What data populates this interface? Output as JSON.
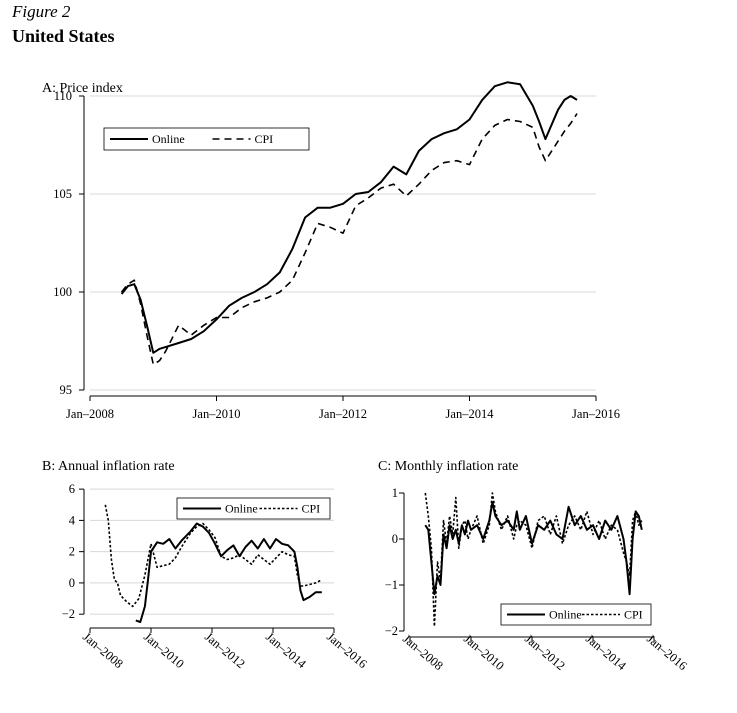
{
  "figure": {
    "label": "Figure 2",
    "title": "United States"
  },
  "chart_data": [
    {
      "id": "A",
      "type": "line",
      "title": "A: Price index",
      "xlabel": "",
      "ylabel": "",
      "xlim": [
        2008.0,
        2016.0
      ],
      "ylim": [
        95,
        110
      ],
      "xticks": [
        2008,
        2010,
        2012,
        2014,
        2016
      ],
      "xtick_labels": [
        "Jan–2008",
        "Jan–2010",
        "Jan–2012",
        "Jan–2014",
        "Jan–2016"
      ],
      "yticks": [
        95,
        100,
        105,
        110
      ],
      "grid": true,
      "legend": {
        "placement": "top-left",
        "boxed": true
      },
      "series": [
        {
          "name": "Online",
          "style": "solid",
          "color": "#000000",
          "x": [
            2008.5,
            2008.6,
            2008.7,
            2008.8,
            2008.9,
            2009.0,
            2009.1,
            2009.2,
            2009.4,
            2009.6,
            2009.8,
            2010.0,
            2010.2,
            2010.4,
            2010.6,
            2010.8,
            2011.0,
            2011.2,
            2011.4,
            2011.6,
            2011.8,
            2012.0,
            2012.2,
            2012.4,
            2012.6,
            2012.8,
            2013.0,
            2013.2,
            2013.4,
            2013.6,
            2013.8,
            2014.0,
            2014.2,
            2014.4,
            2014.6,
            2014.8,
            2015.0,
            2015.1,
            2015.2,
            2015.4,
            2015.5,
            2015.6,
            2015.7
          ],
          "y": [
            99.9,
            100.3,
            100.4,
            99.6,
            98.3,
            96.9,
            97.1,
            97.2,
            97.4,
            97.6,
            98.0,
            98.6,
            99.3,
            99.7,
            100.0,
            100.4,
            101.0,
            102.2,
            103.8,
            104.3,
            104.3,
            104.5,
            105.0,
            105.1,
            105.6,
            106.4,
            106.0,
            107.2,
            107.8,
            108.1,
            108.3,
            108.8,
            109.8,
            110.5,
            110.7,
            110.6,
            109.5,
            108.7,
            107.8,
            109.3,
            109.8,
            110.0,
            109.8
          ]
        },
        {
          "name": "CPI",
          "style": "dashed",
          "color": "#000000",
          "x": [
            2008.5,
            2008.6,
            2008.7,
            2008.8,
            2008.9,
            2009.0,
            2009.1,
            2009.2,
            2009.4,
            2009.6,
            2009.8,
            2010.0,
            2010.2,
            2010.4,
            2010.6,
            2010.8,
            2011.0,
            2011.2,
            2011.4,
            2011.6,
            2011.8,
            2012.0,
            2012.2,
            2012.4,
            2012.6,
            2012.8,
            2013.0,
            2013.2,
            2013.4,
            2013.6,
            2013.8,
            2014.0,
            2014.2,
            2014.4,
            2014.6,
            2014.8,
            2015.0,
            2015.1,
            2015.2,
            2015.4,
            2015.5,
            2015.6,
            2015.7
          ],
          "y": [
            100.0,
            100.4,
            100.6,
            99.4,
            97.8,
            96.3,
            96.5,
            97.0,
            98.3,
            97.8,
            98.3,
            98.7,
            98.7,
            99.2,
            99.5,
            99.7,
            100.0,
            100.6,
            102.0,
            103.5,
            103.3,
            103.0,
            104.4,
            104.8,
            105.3,
            105.5,
            104.9,
            105.5,
            106.2,
            106.6,
            106.7,
            106.5,
            107.8,
            108.5,
            108.8,
            108.7,
            108.4,
            107.4,
            106.7,
            107.7,
            108.2,
            108.6,
            109.1
          ]
        }
      ]
    },
    {
      "id": "B",
      "type": "line",
      "title": "B: Annual inflation rate",
      "xlabel": "",
      "ylabel": "",
      "xlim": [
        2008.0,
        2016.0
      ],
      "ylim": [
        -2.5,
        6.2
      ],
      "xticks": [
        2008,
        2010,
        2012,
        2014,
        2016
      ],
      "xtick_labels": [
        "Jan–2008",
        "Jan–2010",
        "Jan–2012",
        "Jan–2014",
        "Jan–2016"
      ],
      "yticks": [
        -2,
        0,
        2,
        4,
        6
      ],
      "grid": true,
      "legend": {
        "placement": "top-right",
        "boxed": true
      },
      "series": [
        {
          "name": "Online",
          "style": "solid",
          "color": "#000000",
          "x": [
            2009.5,
            2009.65,
            2009.8,
            2009.9,
            2010.0,
            2010.2,
            2010.4,
            2010.6,
            2010.8,
            2011.0,
            2011.3,
            2011.5,
            2011.7,
            2011.9,
            2012.1,
            2012.3,
            2012.5,
            2012.7,
            2012.9,
            2013.1,
            2013.3,
            2013.5,
            2013.7,
            2013.9,
            2014.1,
            2014.3,
            2014.5,
            2014.7,
            2014.8,
            2014.9,
            2015.0,
            2015.2,
            2015.4,
            2015.6
          ],
          "y": [
            -2.4,
            -2.5,
            -1.5,
            0.2,
            2.0,
            2.6,
            2.5,
            2.8,
            2.2,
            2.7,
            3.3,
            3.8,
            3.6,
            3.2,
            2.5,
            1.7,
            2.1,
            2.4,
            1.7,
            2.3,
            2.7,
            2.2,
            2.8,
            2.2,
            2.8,
            2.5,
            2.4,
            2.0,
            1.0,
            -0.5,
            -1.1,
            -0.9,
            -0.6,
            -0.6
          ]
        },
        {
          "name": "CPI",
          "style": "dotted",
          "color": "#000000",
          "x": [
            2008.5,
            2008.6,
            2008.7,
            2008.8,
            2008.9,
            2009.0,
            2009.2,
            2009.4,
            2009.6,
            2009.8,
            2010.0,
            2010.2,
            2010.4,
            2010.6,
            2010.8,
            2011.0,
            2011.3,
            2011.5,
            2011.7,
            2011.9,
            2012.1,
            2012.3,
            2012.5,
            2012.7,
            2012.9,
            2013.1,
            2013.3,
            2013.5,
            2013.7,
            2013.9,
            2014.1,
            2014.3,
            2014.5,
            2014.7,
            2014.8,
            2014.9,
            2015.0,
            2015.2,
            2015.4,
            2015.6
          ],
          "y": [
            5.0,
            4.0,
            1.5,
            0.2,
            0.0,
            -0.8,
            -1.2,
            -1.5,
            -1.0,
            0.5,
            2.5,
            1.0,
            1.1,
            1.2,
            1.6,
            2.3,
            3.2,
            3.6,
            3.8,
            3.4,
            2.9,
            1.7,
            1.5,
            1.6,
            1.8,
            1.5,
            1.2,
            1.8,
            1.5,
            1.2,
            1.6,
            2.0,
            1.8,
            1.7,
            0.5,
            -0.2,
            -0.2,
            -0.1,
            0.0,
            0.2
          ]
        }
      ]
    },
    {
      "id": "C",
      "type": "line",
      "title": "C: Monthly inflation rate",
      "xlabel": "",
      "ylabel": "",
      "xlim": [
        2008.0,
        2016.0
      ],
      "ylim": [
        -2.0,
        1.0
      ],
      "xticks": [
        2008,
        2010,
        2012,
        2014,
        2016
      ],
      "xtick_labels": [
        "Jan–2008",
        "Jan–2010",
        "Jan–2012",
        "Jan–2014",
        "Jan–2016"
      ],
      "yticks": [
        -2,
        -1,
        0,
        1
      ],
      "grid": false,
      "legend": {
        "placement": "bottom-right",
        "boxed": true
      },
      "series": [
        {
          "name": "Online",
          "style": "solid",
          "color": "#000000",
          "x": [
            2008.5,
            2008.6,
            2008.7,
            2008.8,
            2008.9,
            2009.0,
            2009.1,
            2009.2,
            2009.3,
            2009.4,
            2009.5,
            2009.6,
            2009.7,
            2009.8,
            2009.9,
            2010.0,
            2010.2,
            2010.4,
            2010.6,
            2010.7,
            2010.8,
            2011.0,
            2011.2,
            2011.4,
            2011.5,
            2011.6,
            2011.8,
            2012.0,
            2012.2,
            2012.4,
            2012.6,
            2012.8,
            2013.0,
            2013.2,
            2013.4,
            2013.6,
            2013.8,
            2014.0,
            2014.2,
            2014.4,
            2014.6,
            2014.8,
            2015.0,
            2015.1,
            2015.2,
            2015.3,
            2015.4,
            2015.5,
            2015.6
          ],
          "y": [
            0.3,
            0.2,
            -0.5,
            -1.2,
            -0.8,
            -1.0,
            0.1,
            -0.2,
            0.3,
            0.0,
            0.2,
            -0.1,
            0.3,
            0.1,
            0.4,
            0.2,
            0.3,
            0.0,
            0.4,
            0.8,
            0.5,
            0.3,
            0.4,
            0.2,
            0.6,
            0.2,
            0.5,
            -0.1,
            0.3,
            0.2,
            0.4,
            0.1,
            0.0,
            0.7,
            0.3,
            0.5,
            0.2,
            0.3,
            0.0,
            0.4,
            0.2,
            0.5,
            0.0,
            -0.5,
            -1.2,
            0.0,
            0.6,
            0.5,
            0.2
          ]
        },
        {
          "name": "CPI",
          "style": "dotted",
          "color": "#000000",
          "x": [
            2008.5,
            2008.6,
            2008.7,
            2008.8,
            2008.9,
            2009.0,
            2009.1,
            2009.2,
            2009.3,
            2009.4,
            2009.5,
            2009.6,
            2009.7,
            2009.8,
            2009.9,
            2010.0,
            2010.2,
            2010.4,
            2010.6,
            2010.7,
            2010.8,
            2011.0,
            2011.2,
            2011.4,
            2011.5,
            2011.6,
            2011.8,
            2012.0,
            2012.2,
            2012.4,
            2012.6,
            2012.8,
            2013.0,
            2013.2,
            2013.4,
            2013.6,
            2013.8,
            2014.0,
            2014.2,
            2014.4,
            2014.6,
            2014.8,
            2015.0,
            2015.1,
            2015.2,
            2015.3,
            2015.4,
            2015.5,
            2015.6
          ],
          "y": [
            1.0,
            0.5,
            -0.2,
            -1.9,
            -0.5,
            -0.9,
            0.4,
            -0.1,
            0.5,
            0.1,
            0.9,
            -0.2,
            0.3,
            0.4,
            0.0,
            0.2,
            0.5,
            -0.1,
            0.3,
            1.0,
            0.6,
            0.2,
            0.5,
            0.0,
            0.3,
            0.4,
            0.3,
            -0.2,
            0.4,
            0.5,
            0.1,
            0.5,
            -0.1,
            0.3,
            0.5,
            0.2,
            0.6,
            0.1,
            0.4,
            0.0,
            0.3,
            0.2,
            -0.3,
            -0.5,
            -0.8,
            0.4,
            0.6,
            0.3,
            0.4
          ]
        }
      ]
    }
  ]
}
